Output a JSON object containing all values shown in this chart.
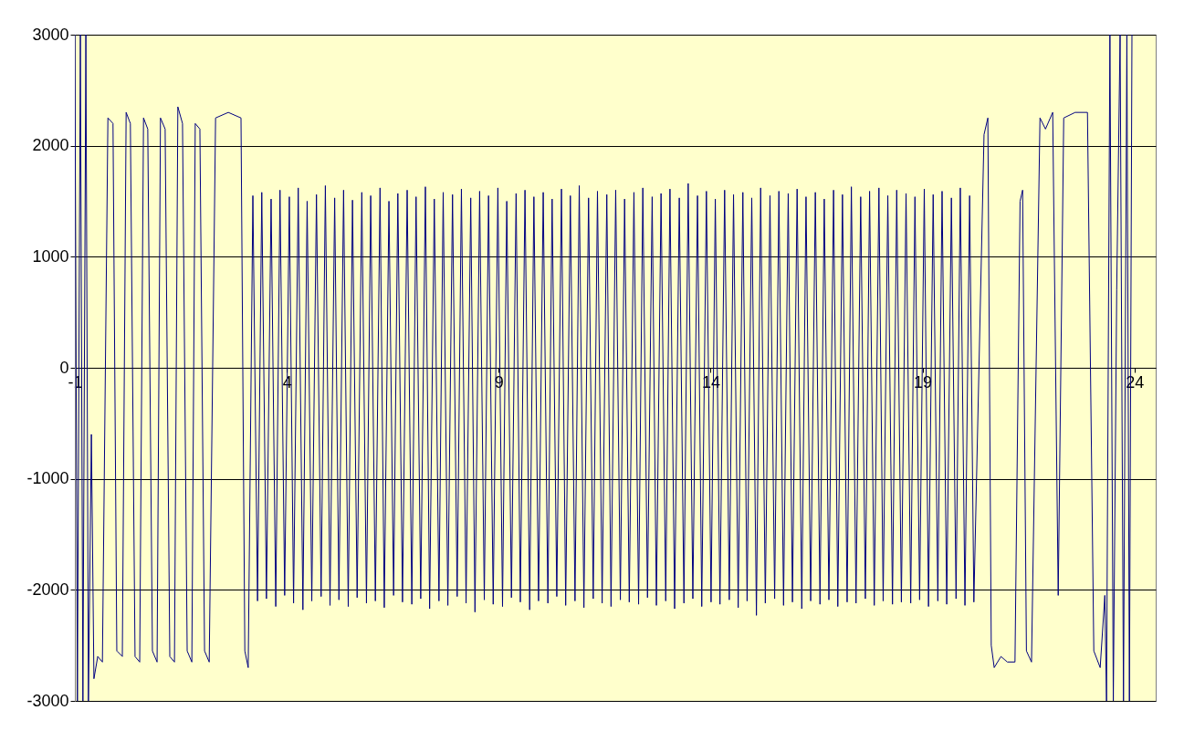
{
  "chart_data": {
    "type": "line",
    "x": [
      -1.0,
      -0.94,
      -0.87,
      -0.81,
      -0.74,
      -0.68,
      -0.61,
      -0.55,
      -0.46,
      -0.35,
      -0.22,
      -0.1,
      -0.01,
      0.12,
      0.21,
      0.31,
      0.42,
      0.53,
      0.62,
      0.72,
      0.83,
      0.94,
      1.02,
      1.13,
      1.24,
      1.35,
      1.43,
      1.54,
      1.65,
      1.76,
      1.84,
      1.95,
      2.06,
      2.17,
      2.32,
      2.62,
      2.92,
      3.01,
      3.09,
      3.2,
      3.31,
      3.41,
      3.52,
      3.63,
      3.74,
      3.84,
      3.95,
      4.06,
      4.16,
      4.27,
      4.38,
      4.48,
      4.59,
      4.7,
      4.81,
      4.91,
      5.02,
      5.13,
      5.23,
      5.34,
      5.45,
      5.55,
      5.66,
      5.77,
      5.88,
      5.98,
      6.09,
      6.2,
      6.3,
      6.41,
      6.52,
      6.62,
      6.73,
      6.84,
      6.95,
      7.05,
      7.16,
      7.27,
      7.37,
      7.48,
      7.59,
      7.69,
      7.8,
      7.91,
      8.02,
      8.12,
      8.23,
      8.34,
      8.44,
      8.55,
      8.66,
      8.76,
      8.87,
      8.98,
      9.09,
      9.19,
      9.3,
      9.41,
      9.51,
      9.62,
      9.73,
      9.83,
      9.94,
      10.05,
      10.16,
      10.26,
      10.37,
      10.48,
      10.58,
      10.69,
      10.8,
      10.9,
      11.01,
      11.12,
      11.23,
      11.33,
      11.44,
      11.55,
      11.65,
      11.76,
      11.87,
      11.97,
      12.08,
      12.19,
      12.3,
      12.4,
      12.51,
      12.62,
      12.72,
      12.83,
      12.94,
      13.04,
      13.15,
      13.26,
      13.37,
      13.47,
      13.58,
      13.69,
      13.79,
      13.9,
      14.01,
      14.11,
      14.22,
      14.33,
      14.44,
      14.54,
      14.65,
      14.76,
      14.86,
      14.97,
      15.08,
      15.18,
      15.29,
      15.4,
      15.51,
      15.61,
      15.72,
      15.83,
      15.93,
      16.04,
      16.15,
      16.25,
      16.36,
      16.47,
      16.58,
      16.68,
      16.79,
      16.9,
      17.0,
      17.11,
      17.22,
      17.32,
      17.43,
      17.54,
      17.65,
      17.75,
      17.86,
      17.97,
      18.07,
      18.18,
      18.29,
      18.39,
      18.5,
      18.61,
      18.72,
      18.82,
      18.93,
      19.04,
      19.14,
      19.25,
      19.36,
      19.46,
      19.57,
      19.68,
      19.79,
      19.89,
      20.0,
      20.11,
      20.21,
      20.45,
      20.54,
      20.62,
      20.69,
      20.85,
      21.0,
      21.18,
      21.3,
      21.36,
      21.45,
      21.57,
      21.77,
      21.9,
      22.07,
      22.2,
      22.33,
      22.6,
      22.89,
      23.04,
      23.19,
      23.3,
      23.34,
      23.42,
      23.5,
      23.58,
      23.66,
      23.74,
      23.82,
      23.88,
      23.94
    ],
    "series": [
      {
        "color": "#000080",
        "values": [
          3000,
          -3000,
          3000,
          -3000,
          3000,
          -3000,
          -600,
          -2800,
          -2600,
          -2650,
          2250,
          2200,
          -2550,
          -2600,
          2300,
          2200,
          -2600,
          -2650,
          2250,
          2150,
          -2550,
          -2650,
          2250,
          2150,
          -2600,
          -2650,
          2350,
          2200,
          -2550,
          -2650,
          2200,
          2150,
          -2550,
          -2650,
          2250,
          2300,
          2250,
          -2550,
          -2700,
          1550,
          -2100,
          1580,
          -2080,
          1520,
          -2150,
          1600,
          -2050,
          1540,
          -2120,
          1620,
          -2180,
          1500,
          -2100,
          1560,
          -2060,
          1640,
          -2140,
          1530,
          -2090,
          1600,
          -2150,
          1510,
          -2070,
          1580,
          -2120,
          1550,
          -2100,
          1620,
          -2160,
          1500,
          -2050,
          1570,
          -2110,
          1600,
          -2130,
          1540,
          -2080,
          1630,
          -2170,
          1520,
          -2100,
          1580,
          -2140,
          1560,
          -2060,
          1610,
          -2120,
          1530,
          -2200,
          1590,
          -2090,
          1550,
          -2130,
          1620,
          -2150,
          1500,
          -2070,
          1570,
          -2110,
          1600,
          -2180,
          1540,
          -2100,
          1580,
          -2120,
          1520,
          -2060,
          1610,
          -2140,
          1550,
          -2100,
          1640,
          -2160,
          1530,
          -2080,
          1590,
          -2120,
          1560,
          -2150,
          1600,
          -2090,
          1520,
          -2110,
          1580,
          -2130,
          1620,
          -2070,
          1540,
          -2140,
          1570,
          -2100,
          1610,
          -2170,
          1530,
          -2120,
          1660,
          -2080,
          1550,
          -2150,
          1590,
          -2110,
          1520,
          -2130,
          1600,
          -2090,
          1560,
          -2160,
          1580,
          -2100,
          1530,
          -2230,
          1620,
          -2120,
          1550,
          -2080,
          1590,
          -2140,
          1570,
          -2110,
          1610,
          -2170,
          1540,
          -2100,
          1580,
          -2130,
          1520,
          -2090,
          1600,
          -2150,
          1560,
          -2110,
          1630,
          -2120,
          1540,
          -2080,
          1590,
          -2140,
          1620,
          -2100,
          1550,
          -2130,
          1600,
          -2110,
          1570,
          -2120,
          1540,
          -2090,
          1610,
          -2150,
          1560,
          -2100,
          1590,
          -2130,
          1530,
          -2080,
          1620,
          -2140,
          1550,
          -2110,
          2100,
          2250,
          -2500,
          -2700,
          -2600,
          -2650,
          -2650,
          1500,
          1600,
          -2550,
          -2650,
          2250,
          2150,
          2300,
          -2050,
          2250,
          2300,
          2300,
          -2550,
          -2700,
          -2050,
          -3000,
          3000,
          -3000,
          700,
          3000,
          -3000,
          3000,
          -3000,
          3000
        ]
      }
    ],
    "xlim": [
      -1,
      24.5
    ],
    "xticks": [
      -1,
      4,
      9,
      14,
      19,
      24
    ],
    "ylim": [
      -3000,
      3000
    ],
    "yticks": [
      -3000,
      -2000,
      -1000,
      0,
      1000,
      2000,
      3000
    ],
    "grid": "y",
    "line_style": "solid"
  }
}
